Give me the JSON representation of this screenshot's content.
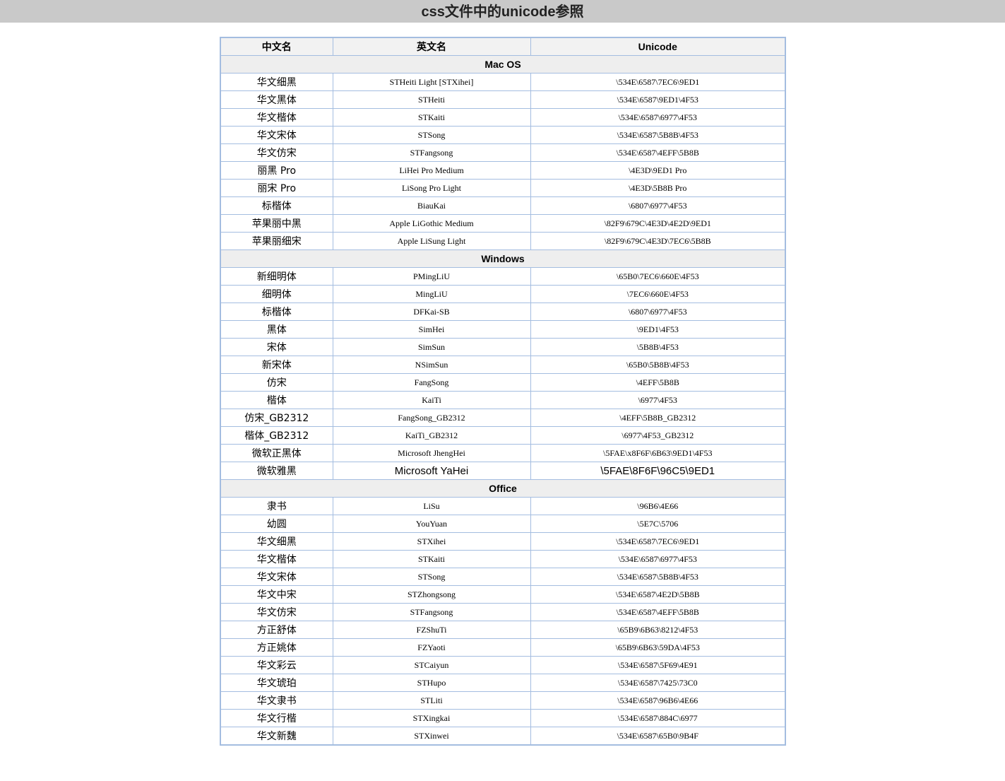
{
  "page": {
    "title": "css文件中的unicode参照"
  },
  "table": {
    "headers": [
      "中文名",
      "英文名",
      "Unicode"
    ],
    "groups": [
      {
        "name": "Mac OS",
        "rows": [
          [
            "华文细黑",
            "STHeiti Light [STXihei]",
            "\\534E\\6587\\7EC6\\9ED1"
          ],
          [
            "华文黑体",
            "STHeiti",
            "\\534E\\6587\\9ED1\\4F53"
          ],
          [
            "华文楷体",
            "STKaiti",
            "\\534E\\6587\\6977\\4F53"
          ],
          [
            "华文宋体",
            "STSong",
            "\\534E\\6587\\5B8B\\4F53"
          ],
          [
            "华文仿宋",
            "STFangsong",
            "\\534E\\6587\\4EFF\\5B8B"
          ],
          [
            "丽黑 Pro",
            "LiHei Pro Medium",
            "\\4E3D\\9ED1 Pro"
          ],
          [
            "丽宋 Pro",
            "LiSong Pro Light",
            "\\4E3D\\5B8B Pro"
          ],
          [
            "标楷体",
            "BiauKai",
            "\\6807\\6977\\4F53"
          ],
          [
            "苹果丽中黑",
            "Apple LiGothic Medium",
            "\\82F9\\679C\\4E3D\\4E2D\\9ED1"
          ],
          [
            "苹果丽细宋",
            "Apple LiSung Light",
            "\\82F9\\679C\\4E3D\\7EC6\\5B8B"
          ]
        ]
      },
      {
        "name": "Windows",
        "rows": [
          [
            "新细明体",
            "PMingLiU",
            "\\65B0\\7EC6\\660E\\4F53"
          ],
          [
            "细明体",
            "MingLiU",
            "\\7EC6\\660E\\4F53"
          ],
          [
            "标楷体",
            "DFKai-SB",
            "\\6807\\6977\\4F53"
          ],
          [
            "黑体",
            "SimHei",
            "\\9ED1\\4F53"
          ],
          [
            "宋体",
            "SimSun",
            "\\5B8B\\4F53"
          ],
          [
            "新宋体",
            "NSimSun",
            "\\65B0\\5B8B\\4F53"
          ],
          [
            "仿宋",
            "FangSong",
            "\\4EFF\\5B8B"
          ],
          [
            "楷体",
            "KaiTi",
            "\\6977\\4F53"
          ],
          [
            "仿宋_GB2312",
            "FangSong_GB2312",
            "\\4EFF\\5B8B_GB2312"
          ],
          [
            "楷体_GB2312",
            "KaiTi_GB2312",
            "\\6977\\4F53_GB2312"
          ],
          [
            "微软正黑体",
            "Microsoft JhengHei",
            "\\5FAE\\x8F6F\\6B63\\9ED1\\4F53"
          ],
          [
            "微软雅黑",
            "Microsoft YaHei",
            "\\5FAE\\8F6F\\96C5\\9ED1"
          ]
        ]
      },
      {
        "name": "Office",
        "rows": [
          [
            "隶书",
            "LiSu",
            "\\96B6\\4E66"
          ],
          [
            "幼圆",
            "YouYuan",
            "\\5E7C\\5706"
          ],
          [
            "华文细黑",
            "STXihei",
            "\\534E\\6587\\7EC6\\9ED1"
          ],
          [
            "华文楷体",
            "STKaiti",
            "\\534E\\6587\\6977\\4F53"
          ],
          [
            "华文宋体",
            "STSong",
            "\\534E\\6587\\5B8B\\4F53"
          ],
          [
            "华文中宋",
            "STZhongsong",
            "\\534E\\6587\\4E2D\\5B8B"
          ],
          [
            "华文仿宋",
            "STFangsong",
            "\\534E\\6587\\4EFF\\5B8B"
          ],
          [
            "方正舒体",
            "FZShuTi",
            "\\65B9\\6B63\\8212\\4F53"
          ],
          [
            "方正姚体",
            "FZYaoti",
            "\\65B9\\6B63\\59DA\\4F53"
          ],
          [
            "华文彩云",
            "STCaiyun",
            "\\534E\\6587\\5F69\\4E91"
          ],
          [
            "华文琥珀",
            "STHupo",
            "\\534E\\6587\\7425\\73C0"
          ],
          [
            "华文隶书",
            "STLiti",
            "\\534E\\6587\\96B6\\4E66"
          ],
          [
            "华文行楷",
            "STXingkai",
            "\\534E\\6587\\884C\\6977"
          ],
          [
            "华文新魏",
            "STXinwei",
            "\\534E\\6587\\65B0\\9B4F"
          ]
        ]
      }
    ]
  }
}
